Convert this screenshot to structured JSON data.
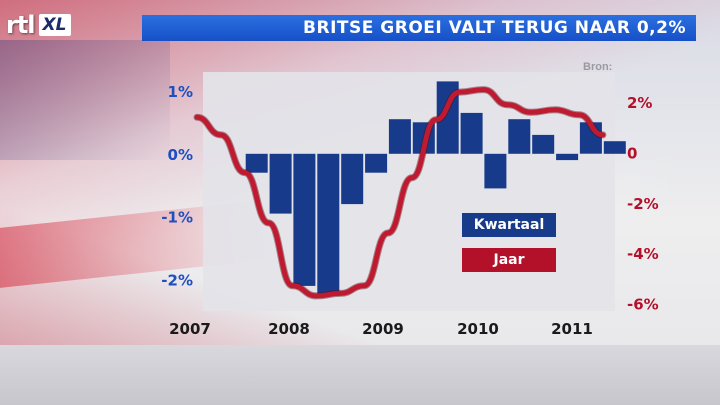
{
  "header": {
    "logo_rtl": "rtl",
    "logo_xl": "XL",
    "title": "BRITSE GROEI VALT TERUG NAAR 0,2%"
  },
  "source": "Bron:",
  "colors": {
    "bar": "#173a8a",
    "line": "#c01a30",
    "title_bar": "#1f5fd6",
    "plot_bg": "#e3e3e8"
  },
  "chart_data": {
    "type": "bar",
    "title": "BRITSE GROEI VALT TERUG NAAR 0,2%",
    "x_ticks": [
      "2007",
      "2008",
      "2009",
      "2010",
      "2011"
    ],
    "left_axis": {
      "ticks": [
        "1%",
        "0%",
        "-1%",
        "-2%"
      ],
      "tick_values": [
        1,
        0,
        -1,
        -2
      ],
      "ylim": [
        -2.5,
        1.3
      ]
    },
    "right_axis": {
      "ticks": [
        "2%",
        "0",
        "-2%",
        "-4%",
        "-6%"
      ],
      "tick_values": [
        2,
        0,
        -2,
        -4,
        -6
      ],
      "ylim": [
        -6.3,
        3.2
      ]
    },
    "grid": false,
    "legend_position": "bottom-right",
    "series": [
      {
        "name": "Kwartaal",
        "type": "bar",
        "axis": "left",
        "x": [
          "2007Q3",
          "2007Q4",
          "2008Q1",
          "2008Q2",
          "2008Q3",
          "2008Q4",
          "2009Q1",
          "2009Q2",
          "2009Q3",
          "2009Q4",
          "2010Q1",
          "2010Q2",
          "2010Q3",
          "2010Q4",
          "2011Q1",
          "2011Q2"
        ],
        "values": [
          -0.3,
          -0.95,
          -2.1,
          -2.25,
          -0.8,
          -0.3,
          0.55,
          0.5,
          1.15,
          0.65,
          -0.55,
          0.55,
          0.3,
          -0.1,
          0.5,
          0.2
        ]
      },
      {
        "name": "Jaar",
        "type": "line",
        "axis": "right",
        "x": [
          "2007Q1",
          "2007Q2",
          "2007Q3",
          "2007Q4",
          "2008Q1",
          "2008Q2",
          "2008Q3",
          "2008Q4",
          "2009Q1",
          "2009Q2",
          "2009Q3",
          "2009Q4",
          "2010Q1",
          "2010Q2",
          "2010Q3",
          "2010Q4",
          "2011Q1",
          "2011Q2"
        ],
        "values": [
          1.4,
          0.7,
          -0.8,
          -2.8,
          -5.3,
          -5.7,
          -5.6,
          -5.3,
          -3.2,
          -1.0,
          1.3,
          2.4,
          2.5,
          1.9,
          1.6,
          1.7,
          1.5,
          0.7
        ]
      }
    ]
  }
}
